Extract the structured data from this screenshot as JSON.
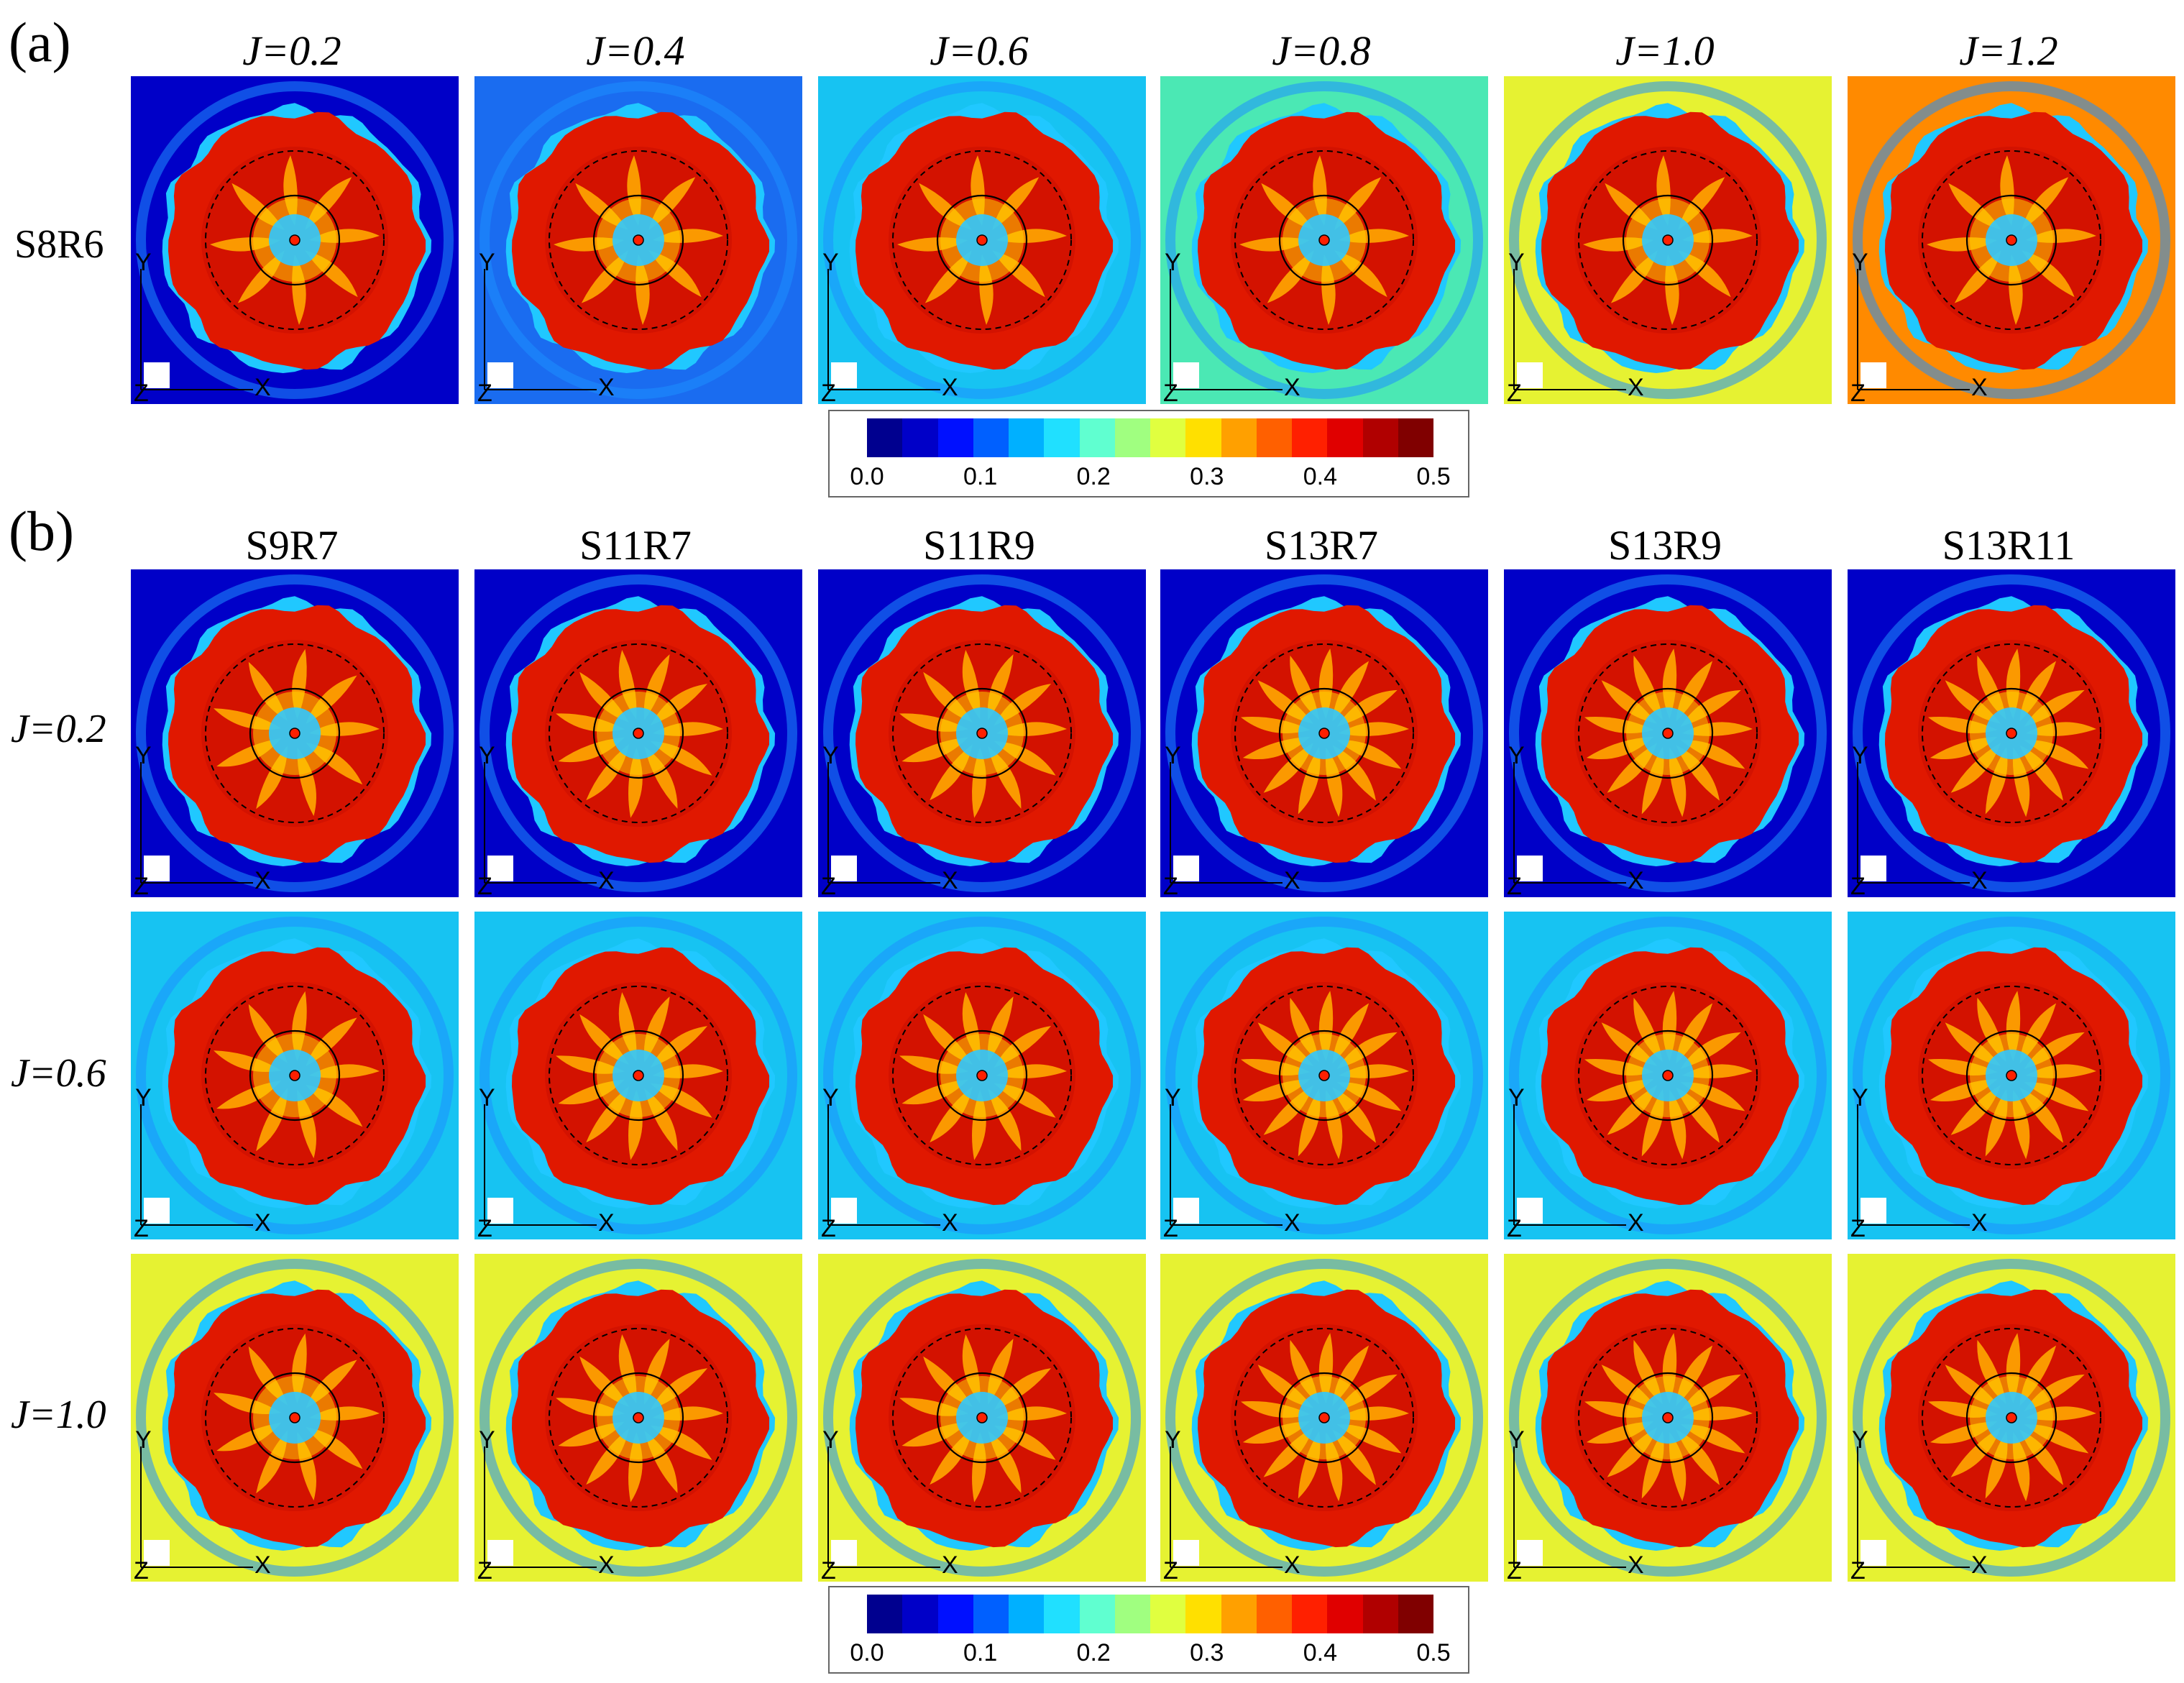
{
  "part_a": {
    "label": "(a)",
    "row_label": "S8R6",
    "columns": [
      "J=0.2",
      "J=0.4",
      "J=0.6",
      "J=0.8",
      "J=1.0",
      "J=1.2"
    ],
    "backgrounds": [
      "#0000c8",
      "#1a6cf0",
      "#17c3f2",
      "#4be8b4",
      "#e6f232",
      "#ff8a00"
    ],
    "blade_counts": [
      8,
      8,
      8,
      8,
      8,
      8
    ]
  },
  "part_b": {
    "label": "(b)",
    "columns": [
      "S9R7",
      "S11R7",
      "S11R9",
      "S13R7",
      "S13R9",
      "S13R11"
    ],
    "blade_counts": [
      9,
      11,
      11,
      13,
      13,
      13
    ],
    "rows": [
      {
        "label": "J=0.2",
        "background": "#0000c8"
      },
      {
        "label": "J=0.6",
        "background": "#17c3f2"
      },
      {
        "label": "J=1.0",
        "background": "#e6f232"
      }
    ]
  },
  "axis_labels": {
    "x": "X",
    "y": "Y",
    "z": "Z"
  },
  "colorbar": {
    "ticks": [
      "0.0",
      "0.1",
      "0.2",
      "0.3",
      "0.4",
      "0.5"
    ],
    "range": [
      0.0,
      0.5
    ],
    "colors": [
      "#00008f",
      "#0000c8",
      "#0010ff",
      "#0060ff",
      "#00b0ff",
      "#20e0ff",
      "#60ffd0",
      "#a0ff80",
      "#e0ff40",
      "#ffe000",
      "#ffa000",
      "#ff6000",
      "#ff2000",
      "#e00000",
      "#b00000",
      "#800000"
    ]
  }
}
